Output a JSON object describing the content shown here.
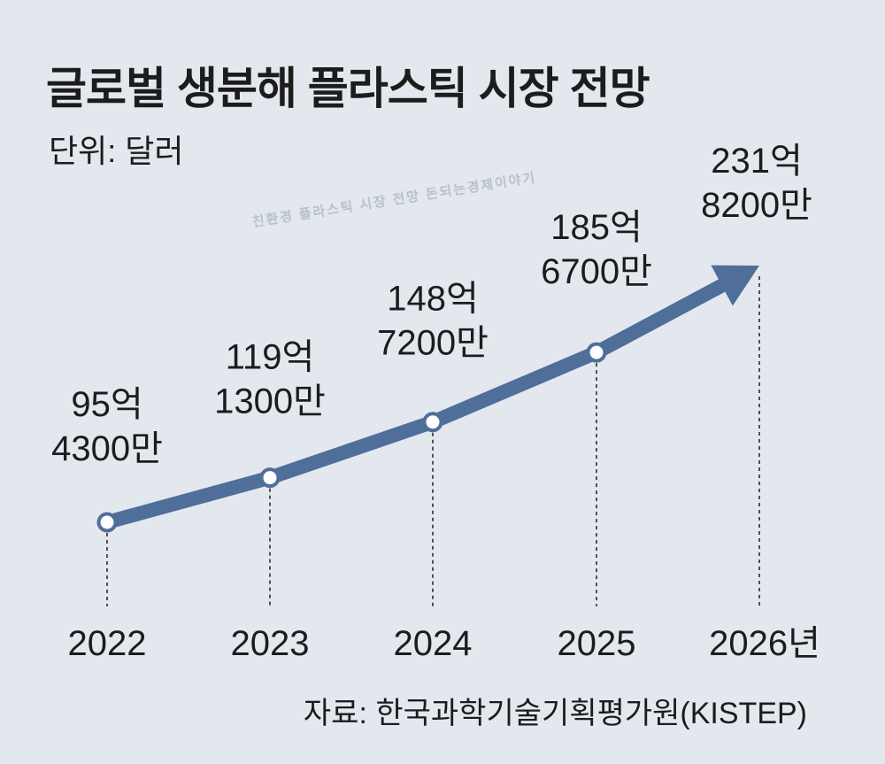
{
  "title": "글로벌 생분해 플라스틱 시장 전망",
  "unit": "단위: 달러",
  "watermark": "친환경 플라스틱 시장 전망 돈되는경제이야기",
  "source": "자료: 한국과학기술기획평가원(KISTEP)",
  "colors": {
    "background": "#e3e8ef",
    "line": "#4f6f9a",
    "text": "#1c1c1c"
  },
  "chart_data": {
    "type": "line",
    "categories": [
      "2022",
      "2023",
      "2024",
      "2025",
      "2026"
    ],
    "category_labels": [
      "2022",
      "2023",
      "2024",
      "2025",
      "2026년"
    ],
    "values": [
      9543000000,
      11913000000,
      14872000000,
      18567000000,
      23182000000
    ],
    "value_labels": [
      [
        "95억",
        "4300만"
      ],
      [
        "119억",
        "1300만"
      ],
      [
        "148억",
        "7200만"
      ],
      [
        "185억",
        "6700만"
      ],
      [
        "231억",
        "8200만"
      ]
    ],
    "ylabel": "",
    "xlabel": "",
    "grid": false,
    "legend": "none"
  }
}
